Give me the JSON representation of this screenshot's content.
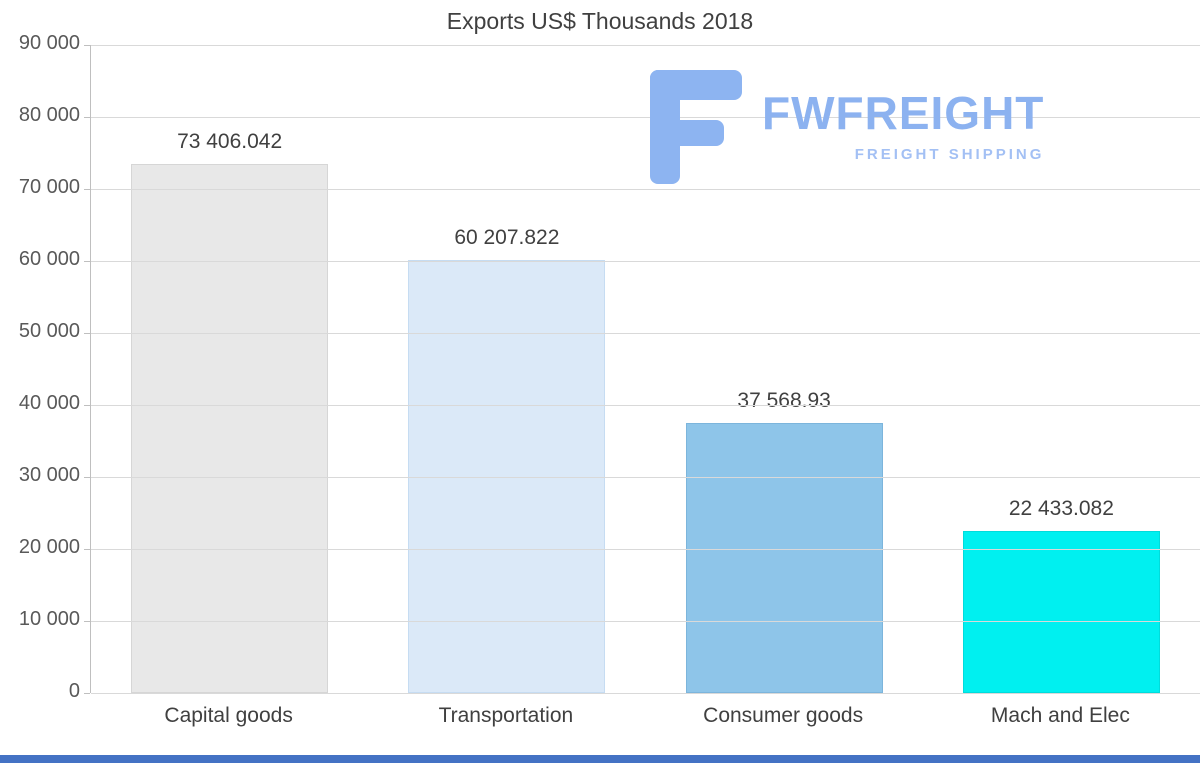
{
  "title": "Exports US$ Thousands 2018",
  "logo": {
    "name": "FWFREIGHT",
    "subtitle": "FREIGHT SHIPPING",
    "glyph_color": "#8db4f1",
    "name_color": "#8cb2f0",
    "subtitle_color": "#a3c0f4"
  },
  "footer": {
    "color": "#4472c4"
  },
  "chart_data": {
    "type": "bar",
    "title": "Exports US$ Thousands 2018",
    "categories": [
      "Capital goods",
      "Transportation",
      "Consumer goods",
      "Mach and Elec"
    ],
    "values": [
      73406.042,
      60207.822,
      37568.93,
      22433.082
    ],
    "value_labels": [
      "73 406.042",
      "60 207.822",
      "37 568.93",
      "22 433.082"
    ],
    "bar_colors": [
      "#e8e8e8",
      "#dbe9f8",
      "#8ec5e9",
      "#00f0f0"
    ],
    "bar_border_colors": [
      "#d6d6d6",
      "#c6dcf2",
      "#7cb5dc",
      "#00dcdc"
    ],
    "xlabel": "",
    "ylabel": "",
    "ylim": [
      0,
      90000
    ],
    "ytick_step": 10000,
    "ytick_labels": [
      "0",
      "10 000",
      "20 000",
      "30 000",
      "40 000",
      "50 000",
      "60 000",
      "70 000",
      "80 000",
      "90 000"
    ],
    "grid": "horizontal",
    "legend": "none"
  }
}
